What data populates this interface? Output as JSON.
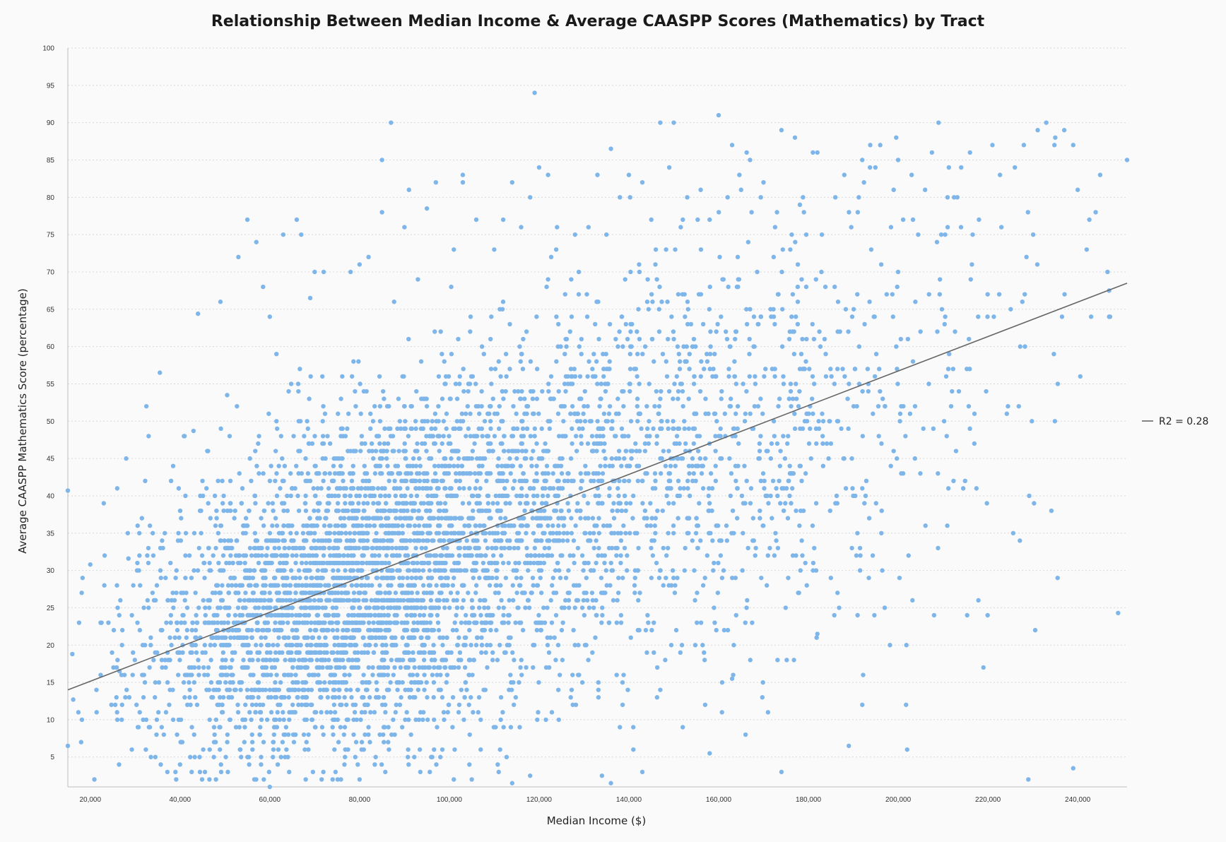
{
  "chart_data": {
    "type": "scatter",
    "title": "Relationship Between Median Income & Average CAASPP Scores (Mathematics) by Tract",
    "xlabel": "Median Income ($)",
    "ylabel": "Average CAASPP Mathematics Score (percentage)",
    "xlim": [
      15000,
      251000
    ],
    "ylim": [
      1,
      100
    ],
    "x_ticks": [
      20000,
      40000,
      60000,
      80000,
      100000,
      120000,
      140000,
      160000,
      180000,
      200000,
      220000,
      240000
    ],
    "x_tick_labels": [
      "20,000",
      "40,000",
      "60,000",
      "80,000",
      "100,000",
      "120,000",
      "140,000",
      "160,000",
      "180,000",
      "200,000",
      "220,000",
      "240,000"
    ],
    "y_ticks": [
      5,
      10,
      15,
      20,
      25,
      30,
      35,
      40,
      45,
      50,
      55,
      60,
      65,
      70,
      75,
      80,
      85,
      90,
      95,
      100
    ],
    "y_tick_labels": [
      "5",
      "10",
      "15",
      "20",
      "25",
      "30",
      "35",
      "40",
      "45",
      "50",
      "55",
      "60",
      "65",
      "70",
      "75",
      "80",
      "85",
      "90",
      "95",
      "100"
    ],
    "grid": "horizontal dashed",
    "legend": {
      "placement": "right",
      "entries": [
        {
          "label": "R2 = 0.28",
          "color": "#666666"
        }
      ]
    },
    "colors": {
      "points": "#7fb6ea",
      "trendline": "#666666",
      "background": "#fafafa"
    },
    "trendline": {
      "r2": 0.28,
      "x": [
        15000,
        251000
      ],
      "y": [
        14,
        68.5
      ]
    },
    "series": [
      {
        "points": [
          [
            15000,
            40.7
          ],
          [
            15000,
            6.5
          ],
          [
            16000,
            18.8
          ],
          [
            16200,
            12.7
          ],
          [
            17500,
            23.0
          ],
          [
            20000,
            30.8
          ],
          [
            22500,
            23.0
          ],
          [
            26000,
            41.0
          ],
          [
            26500,
            16.5
          ],
          [
            27000,
            10.0
          ],
          [
            28000,
            45.0
          ],
          [
            28500,
            31.6
          ],
          [
            31500,
            37.0
          ],
          [
            32500,
            52.0
          ],
          [
            33000,
            48.0
          ],
          [
            33500,
            5.0
          ],
          [
            34500,
            5.0
          ],
          [
            35500,
            56.5
          ],
          [
            36000,
            34.0
          ],
          [
            38000,
            42.0
          ],
          [
            40000,
            4.0
          ],
          [
            41000,
            48.0
          ],
          [
            43000,
            48.7
          ],
          [
            44000,
            64.4
          ],
          [
            45000,
            42.0
          ],
          [
            48000,
            2.0
          ],
          [
            49000,
            66.0
          ],
          [
            50500,
            53.5
          ],
          [
            53000,
            72.0
          ],
          [
            55000,
            77.0
          ],
          [
            57000,
            74.0
          ],
          [
            58500,
            68.0
          ],
          [
            60000,
            1.0
          ],
          [
            60000,
            64.0
          ],
          [
            63000,
            75.0
          ],
          [
            66000,
            77.0
          ],
          [
            67000,
            75.0
          ],
          [
            68000,
            2.0
          ],
          [
            69000,
            66.5
          ],
          [
            70000,
            70.0
          ],
          [
            72000,
            70.0
          ],
          [
            74000,
            2.0
          ],
          [
            78000,
            70.0
          ],
          [
            80000,
            71.0
          ],
          [
            80000,
            2.0
          ],
          [
            82000,
            72.0
          ],
          [
            85000,
            85.0
          ],
          [
            85000,
            78.0
          ],
          [
            87000,
            90.0
          ],
          [
            90000,
            76.0
          ],
          [
            91000,
            81.0
          ],
          [
            93000,
            69.0
          ],
          [
            95000,
            78.5
          ],
          [
            97000,
            82.0
          ],
          [
            101000,
            73.0
          ],
          [
            103000,
            83.0
          ],
          [
            103000,
            82.0
          ],
          [
            106000,
            77.0
          ],
          [
            110000,
            73.0
          ],
          [
            112000,
            77.0
          ],
          [
            114000,
            82.0
          ],
          [
            116000,
            76.0
          ],
          [
            118000,
            80.0
          ],
          [
            119000,
            94.0
          ],
          [
            120000,
            84.0
          ],
          [
            122000,
            83.0
          ],
          [
            124000,
            76.0
          ],
          [
            128000,
            75.0
          ],
          [
            131000,
            76.0
          ],
          [
            133000,
            83.0
          ],
          [
            135000,
            75.0
          ],
          [
            136000,
            86.5
          ],
          [
            138000,
            80.0
          ],
          [
            140000,
            83.0
          ],
          [
            143000,
            82.0
          ],
          [
            145000,
            77.0
          ],
          [
            147000,
            90.0
          ],
          [
            149000,
            84.0
          ],
          [
            150000,
            90.0
          ],
          [
            153000,
            80.0
          ],
          [
            156000,
            81.0
          ],
          [
            158000,
            77.0
          ],
          [
            160000,
            91.0
          ],
          [
            162000,
            80.0
          ],
          [
            163000,
            87.0
          ],
          [
            165000,
            81.0
          ],
          [
            167000,
            85.0
          ],
          [
            170000,
            82.0
          ],
          [
            173000,
            78.0
          ],
          [
            174000,
            89.0
          ],
          [
            177000,
            88.0
          ],
          [
            179000,
            78.0
          ],
          [
            181000,
            86.0
          ],
          [
            183000,
            75.0
          ],
          [
            186000,
            80.0
          ],
          [
            188000,
            83.0
          ],
          [
            191000,
            78.0
          ],
          [
            192000,
            85.0
          ],
          [
            194000,
            73.0
          ],
          [
            196000,
            87.0
          ],
          [
            199000,
            81.0
          ],
          [
            200000,
            85.0
          ],
          [
            203000,
            83.0
          ],
          [
            206000,
            81.0
          ],
          [
            209000,
            90.0
          ],
          [
            211000,
            80.0
          ],
          [
            214000,
            76.0
          ],
          [
            216000,
            86.0
          ],
          [
            218000,
            77.0
          ],
          [
            221000,
            87.0
          ],
          [
            223000,
            76.0
          ],
          [
            226000,
            84.0
          ],
          [
            228000,
            87.0
          ],
          [
            231000,
            71.0
          ],
          [
            233000,
            90.0
          ],
          [
            235000,
            88.0
          ],
          [
            237000,
            89.0
          ],
          [
            239000,
            87.0
          ],
          [
            240000,
            81.0
          ],
          [
            242000,
            73.0
          ],
          [
            244000,
            78.0
          ],
          [
            245000,
            83.0
          ],
          [
            247000,
            67.5
          ],
          [
            247000,
            64.0
          ],
          [
            249000,
            24.3
          ],
          [
            251000,
            85.0
          ],
          [
            239000,
            3.5
          ],
          [
            229000,
            2.0
          ],
          [
            219000,
            17.0
          ],
          [
            217000,
            51.0
          ],
          [
            212000,
            54.0
          ],
          [
            208000,
            24.0
          ],
          [
            202000,
            6.0
          ],
          [
            197000,
            25.0
          ],
          [
            192000,
            12.0
          ],
          [
            189000,
            6.5
          ],
          [
            185000,
            29.0
          ],
          [
            182000,
            21.5
          ],
          [
            174000,
            3.0
          ],
          [
            171000,
            11.0
          ],
          [
            166000,
            8.0
          ],
          [
            163000,
            15.5
          ],
          [
            158000,
            5.5
          ],
          [
            152000,
            9.0
          ],
          [
            147000,
            14.0
          ],
          [
            143000,
            3.0
          ],
          [
            141000,
            6.0
          ],
          [
            138000,
            9.0
          ],
          [
            136000,
            1.5
          ],
          [
            134000,
            2.5
          ],
          [
            118000,
            2.5
          ],
          [
            114000,
            1.5
          ],
          [
            111000,
            3.0
          ],
          [
            105000,
            2.0
          ],
          [
            101000,
            2.0
          ],
          [
            98000,
            5.0
          ]
        ]
      }
    ]
  }
}
